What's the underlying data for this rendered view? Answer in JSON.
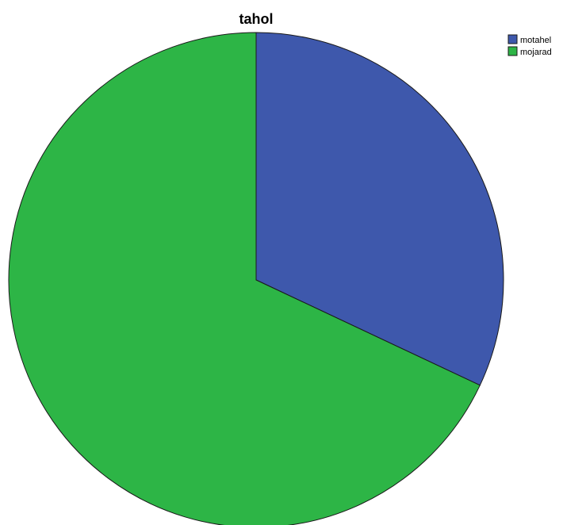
{
  "chart_data": {
    "type": "pie",
    "title": "tahol",
    "categories": [
      "motahel",
      "mojarad"
    ],
    "values": [
      32,
      68
    ],
    "colors": [
      "#3e58ac",
      "#2db546"
    ],
    "start_angle_deg": 0,
    "direction": "clockwise",
    "legend_position": "top-right"
  }
}
